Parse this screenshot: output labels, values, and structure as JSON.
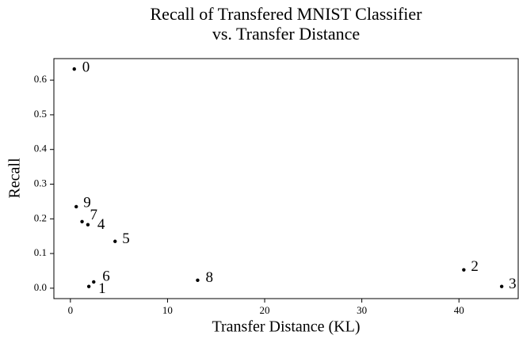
{
  "chart_data": {
    "type": "scatter",
    "title": [
      "Recall of Transfered MNIST Classifier",
      "vs. Transfer Distance"
    ],
    "x_label": "Transfer Distance (KL)",
    "y_label": "Recall",
    "labels": [
      "0",
      "1",
      "2",
      "3",
      "4",
      "5",
      "6",
      "7",
      "8",
      "9"
    ],
    "x": [
      0.4,
      1.9,
      40.5,
      44.4,
      1.8,
      4.6,
      2.4,
      1.2,
      13.1,
      0.6
    ],
    "y": [
      0.632,
      0.005,
      0.053,
      0.005,
      0.183,
      0.135,
      0.018,
      0.192,
      0.023,
      0.235
    ],
    "color": "#000000",
    "xlim": [
      -1.7,
      46.1
    ],
    "xticks": [
      0,
      10,
      20,
      30,
      40
    ],
    "ylim": [
      -0.03,
      0.662
    ],
    "yticks": [
      {
        "value": 0,
        "label": "0.0"
      },
      0.1,
      0.2,
      0.3,
      0.4,
      0.5,
      0.6
    ]
  }
}
